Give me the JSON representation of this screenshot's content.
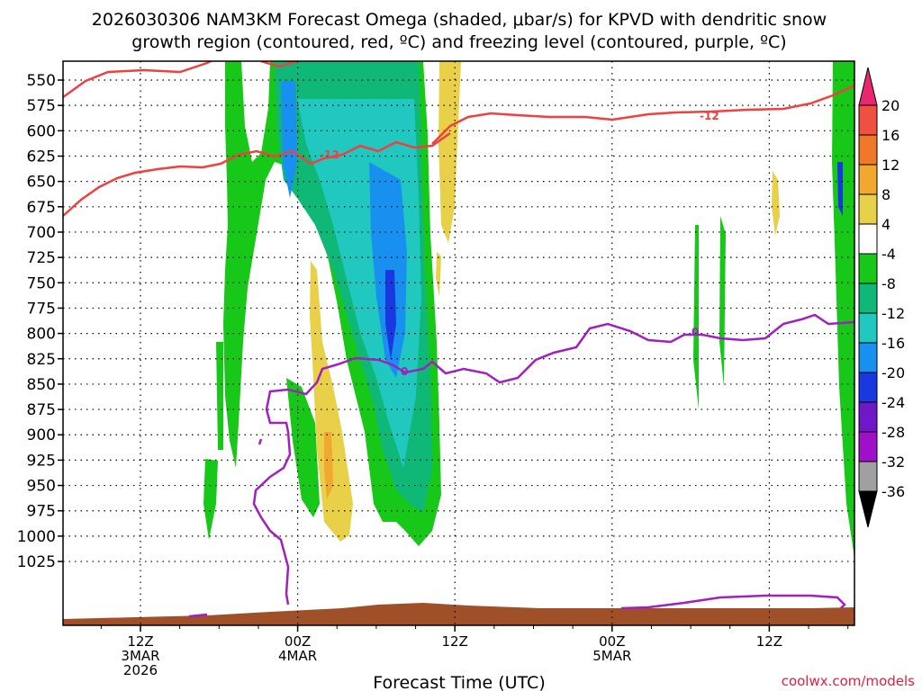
{
  "chart_data": {
    "type": "heatmap",
    "title_line1": "2026030306 NAM3KM Forecast Omega (shaded, μbar/s) for KPVD with dendritic snow",
    "title_line2": "growth region (contoured, red, ºC) and freezing level (contoured, purple, ºC)",
    "xlabel": "Forecast Time (UTC)",
    "ylabel": "",
    "credit": "coolwx.com/models",
    "y_ticks": [
      "550",
      "575",
      "600",
      "625",
      "650",
      "675",
      "700",
      "725",
      "750",
      "775",
      "800",
      "825",
      "850",
      "875",
      "900",
      "925",
      "950",
      "975",
      "1000",
      "1025"
    ],
    "x_ticks": [
      {
        "hour": 6,
        "line1": "12Z",
        "line2": "3MAR",
        "line3": "2026"
      },
      {
        "hour": 18,
        "line1": "00Z",
        "line2": "4MAR",
        "line3": ""
      },
      {
        "hour": 30,
        "line1": "12Z",
        "line2": "",
        "line3": ""
      },
      {
        "hour": 42,
        "line1": "00Z",
        "line2": "5MAR",
        "line3": ""
      },
      {
        "hour": 54,
        "line1": "12Z",
        "line2": "",
        "line3": ""
      }
    ],
    "colorbar": {
      "labels": [
        "20",
        "16",
        "12",
        "8",
        "4",
        "-4",
        "-8",
        "-12",
        "-16",
        "-20",
        "-24",
        "-28",
        "-32",
        "-36"
      ],
      "colors": [
        "#e8286e",
        "#f05040",
        "#f07828",
        "#f0a830",
        "#e8d048",
        "#ffffff",
        "#18c818",
        "#10b878",
        "#20c8c0",
        "#1890f0",
        "#1838e0",
        "#7018c8",
        "#a010c8",
        "#a0a0a0",
        "#000000"
      ]
    },
    "contours": {
      "dendritic_label": "-12",
      "freezing_label": "0"
    },
    "colors": {
      "dgz_line": "#f04040",
      "freezing_line": "#a020c0",
      "terrain": "#a05028"
    }
  }
}
